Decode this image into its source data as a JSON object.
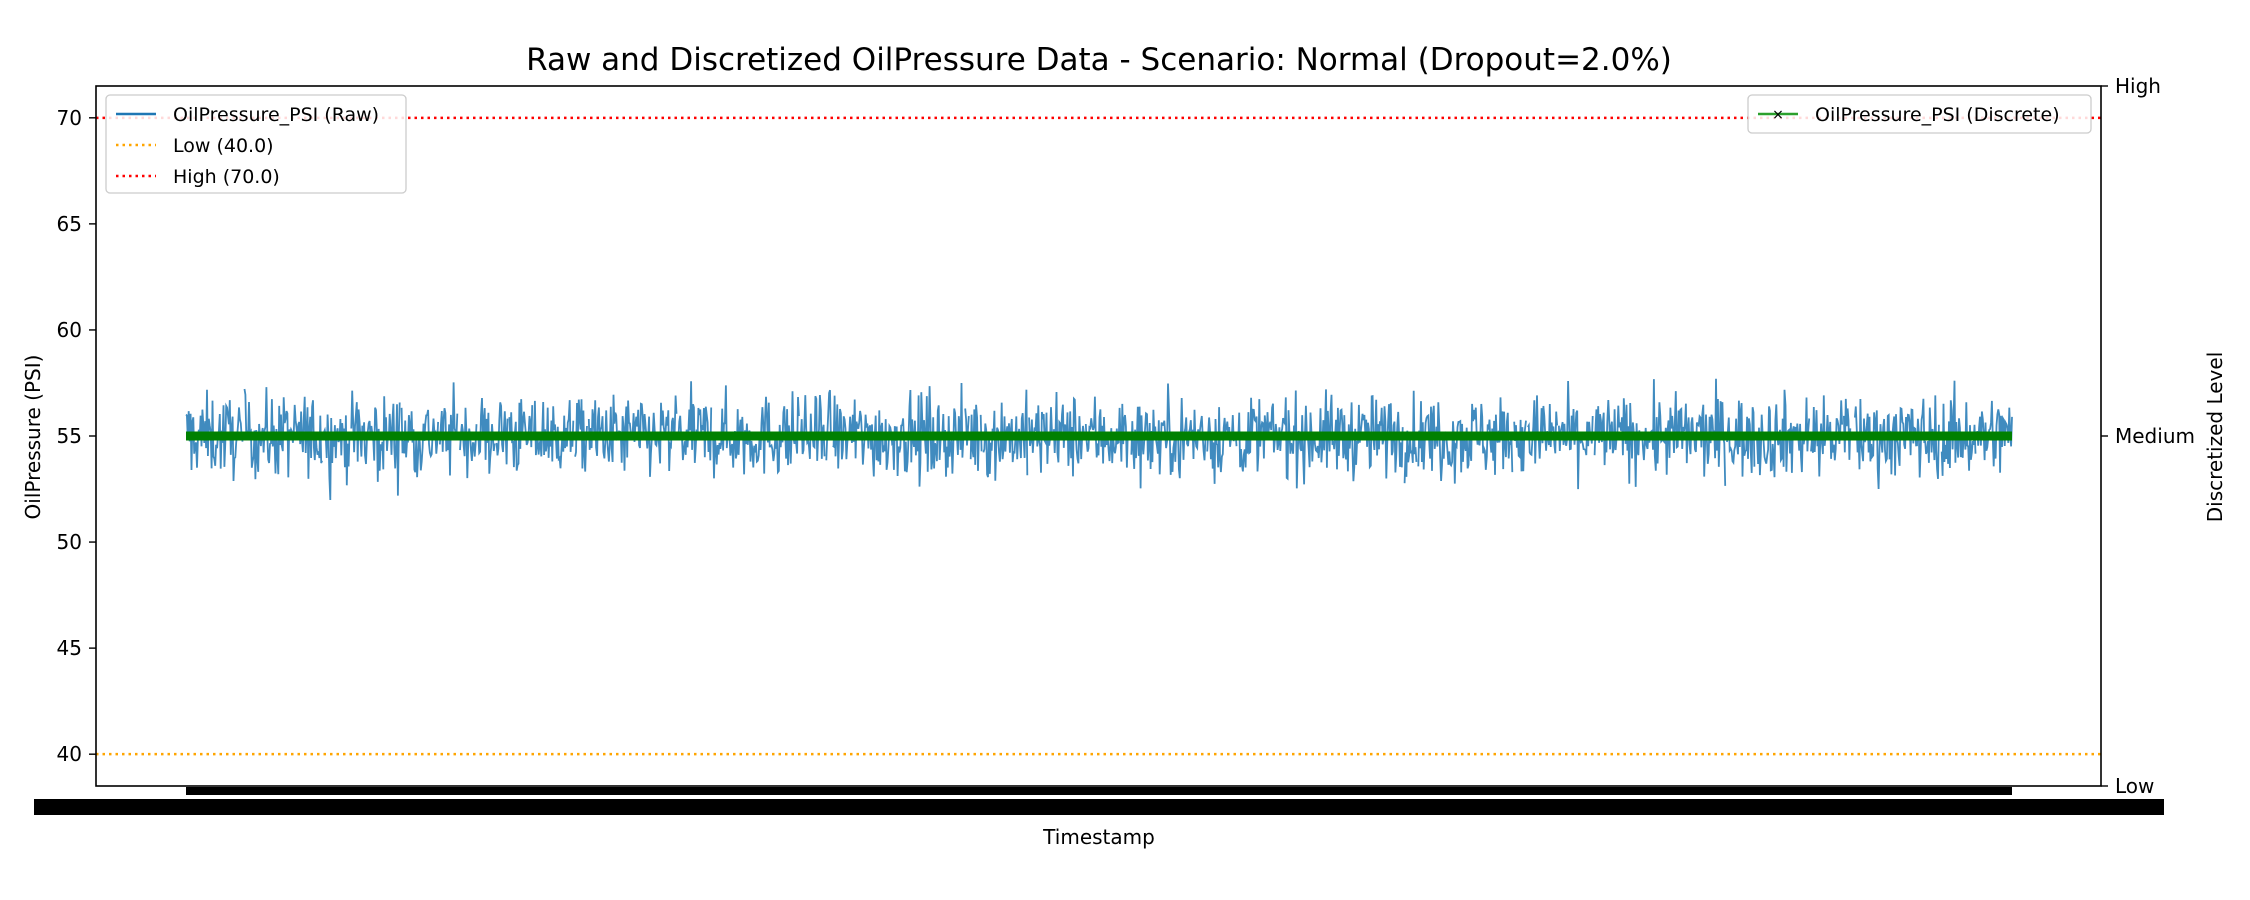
{
  "chart_data": {
    "type": "line",
    "title": "Raw and Discretized OilPressure Data - Scenario: Normal (Dropout=2.0%)",
    "xlabel": "Timestamp",
    "ylabel": "OilPressure (PSI)",
    "ylabel_right": "Discretized Level",
    "ylim": [
      38.5,
      71.5
    ],
    "yticks": [
      40,
      45,
      50,
      55,
      60,
      65,
      70
    ],
    "right_ticks": [
      "Low",
      "Medium",
      "High"
    ],
    "grid": false,
    "legend_left": "top-left",
    "legend_right": "top-right",
    "series": [
      {
        "name": "OilPressure_PSI (Raw)",
        "color": "#1f77b4",
        "mean": 55.0,
        "min": 51.0,
        "max": 59.2,
        "n_points": 2000,
        "dropout": 0.02
      },
      {
        "name": "OilPressure_PSI (Discrete)",
        "color": "#2ca02c",
        "level": "Medium",
        "value": 55.0
      }
    ],
    "thresholds": [
      {
        "name": "Low (40.0)",
        "value": 40.0,
        "color": "#ffa500"
      },
      {
        "name": "High (70.0)",
        "value": 70.0,
        "color": "#ff0000"
      }
    ]
  }
}
